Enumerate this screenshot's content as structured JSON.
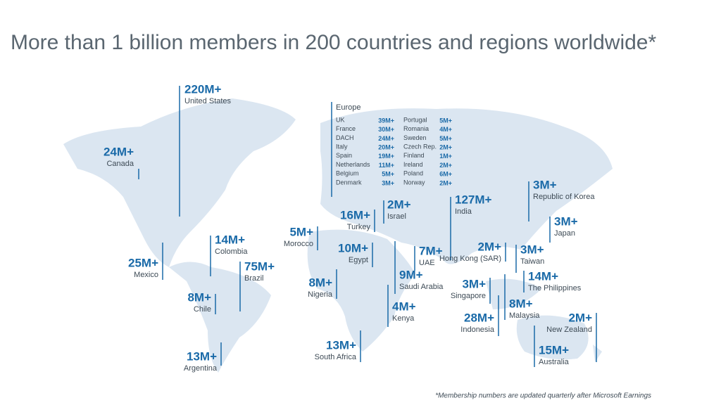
{
  "title": "More than 1 billion members in 200 countries and regions worldwide*",
  "footnote": "*Membership numbers are updated quarterly after Microsoft Earnings",
  "countries": [
    {
      "value": "220M+",
      "name": "United States"
    },
    {
      "value": "24M+",
      "name": "Canada"
    },
    {
      "value": "25M+",
      "name": "Mexico"
    },
    {
      "value": "14M+",
      "name": "Colombia"
    },
    {
      "value": "75M+",
      "name": "Brazil"
    },
    {
      "value": "8M+",
      "name": "Chile"
    },
    {
      "value": "13M+",
      "name": "Argentina"
    },
    {
      "value": "5M+",
      "name": "Morocco"
    },
    {
      "value": "16M+",
      "name": "Turkey"
    },
    {
      "value": "2M+",
      "name": "Israel"
    },
    {
      "value": "10M+",
      "name": "Egypt"
    },
    {
      "value": "127M+",
      "name": "India"
    },
    {
      "value": "7M+",
      "name": "UAE"
    },
    {
      "value": "9M+",
      "name": "Saudi Arabia"
    },
    {
      "value": "8M+",
      "name": "Nigeria"
    },
    {
      "value": "4M+",
      "name": "Kenya"
    },
    {
      "value": "13M+",
      "name": "South Africa"
    },
    {
      "value": "2M+",
      "name": "Hong Kong (SAR)"
    },
    {
      "value": "3M+",
      "name": "Singapore"
    },
    {
      "value": "28M+",
      "name": "Indonesia"
    },
    {
      "value": "3M+",
      "name": "Taiwan"
    },
    {
      "value": "14M+",
      "name": "The Philippines"
    },
    {
      "value": "8M+",
      "name": "Malaysia"
    },
    {
      "value": "3M+",
      "name": "Republic of Korea"
    },
    {
      "value": "3M+",
      "name": "Japan"
    },
    {
      "value": "2M+",
      "name": "New Zealand"
    },
    {
      "value": "15M+",
      "name": "Australia"
    }
  ],
  "europe": {
    "title": "Europe",
    "rows": [
      {
        "name": "UK",
        "value": "39M+"
      },
      {
        "name": "France",
        "value": "30M+"
      },
      {
        "name": "DACH",
        "value": "24M+"
      },
      {
        "name": "Italy",
        "value": "20M+"
      },
      {
        "name": "Spain",
        "value": "19M+"
      },
      {
        "name": "Netherlands",
        "value": "11M+"
      },
      {
        "name": "Belgium",
        "value": "5M+"
      },
      {
        "name": "Denmark",
        "value": "3M+"
      },
      {
        "name": "Portugal",
        "value": "5M+"
      },
      {
        "name": "Romania",
        "value": "4M+"
      },
      {
        "name": "Sweden",
        "value": "5M+"
      },
      {
        "name": "Czech Rep.",
        "value": "2M+"
      },
      {
        "name": "Finland",
        "value": "1M+"
      },
      {
        "name": "Ireland",
        "value": "2M+"
      },
      {
        "name": "Poland",
        "value": "6M+"
      },
      {
        "name": "Norway",
        "value": "2M+"
      }
    ]
  }
}
